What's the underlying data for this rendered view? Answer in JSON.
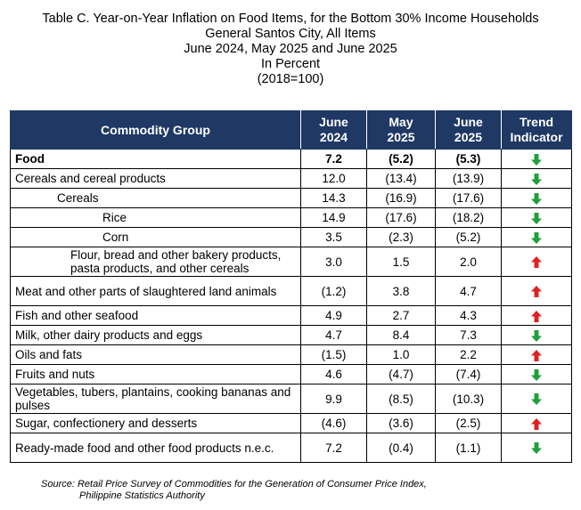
{
  "title": {
    "line1": "Table C. Year-on-Year Inflation on Food Items, for the Bottom 30% Income Households",
    "line2": "General Santos City, All Items",
    "line3": "June 2024, May 2025 and June 2025",
    "line4": "In Percent",
    "line5": "(2018=100)"
  },
  "table": {
    "headers": {
      "commodity": "Commodity Group",
      "june2024": [
        "June",
        "2024"
      ],
      "may2025": [
        "May",
        "2025"
      ],
      "june2025": [
        "June",
        "2025"
      ],
      "trend": [
        "Trend",
        "Indicator"
      ]
    },
    "colors": {
      "header_bg": "#1f3864",
      "up_arrow": "#e02020",
      "down_arrow": "#1fa03a"
    },
    "rows": [
      {
        "name": "Food",
        "v1": "7.2",
        "v2": "(5.2)",
        "v3": "(5.3)",
        "trend": "down",
        "trend_icon": "down-arrow-icon",
        "level": 0,
        "bold": true,
        "tall": false
      },
      {
        "name": "Cereals and cereal products",
        "v1": "12.0",
        "v2": "(13.4)",
        "v3": "(13.9)",
        "trend": "down",
        "trend_icon": "down-arrow-icon",
        "level": 0,
        "bold": false,
        "tall": false
      },
      {
        "name": "Cereals",
        "v1": "14.3",
        "v2": "(16.9)",
        "v3": "(17.6)",
        "trend": "down",
        "trend_icon": "down-arrow-icon",
        "level": 1,
        "bold": false,
        "tall": false
      },
      {
        "name": "Rice",
        "v1": "14.9",
        "v2": "(17.6)",
        "v3": "(18.2)",
        "trend": "down",
        "trend_icon": "down-arrow-icon",
        "level": 2,
        "bold": false,
        "tall": false
      },
      {
        "name": "Corn",
        "v1": "3.5",
        "v2": "(2.3)",
        "v3": "(5.2)",
        "trend": "down",
        "trend_icon": "down-arrow-icon",
        "level": 2,
        "bold": false,
        "tall": false
      },
      {
        "name": "Flour, bread and other bakery products, pasta products, and other cereals",
        "v1": "3.0",
        "v2": "1.5",
        "v3": "2.0",
        "trend": "up",
        "trend_icon": "up-arrow-icon",
        "level": 3,
        "bold": false,
        "tall": true
      },
      {
        "name": "Meat and other parts of slaughtered land animals",
        "v1": "(1.2)",
        "v2": "3.8",
        "v3": "4.7",
        "trend": "up",
        "trend_icon": "up-arrow-icon",
        "level": 0,
        "bold": false,
        "tall": true
      },
      {
        "name": "Fish and other seafood",
        "v1": "4.9",
        "v2": "2.7",
        "v3": "4.3",
        "trend": "up",
        "trend_icon": "up-arrow-icon",
        "level": 0,
        "bold": false,
        "tall": false
      },
      {
        "name": "Milk, other dairy products and eggs",
        "v1": "4.7",
        "v2": "8.4",
        "v3": "7.3",
        "trend": "down",
        "trend_icon": "down-arrow-icon",
        "level": 0,
        "bold": false,
        "tall": false
      },
      {
        "name": "Oils and fats",
        "v1": "(1.5)",
        "v2": "1.0",
        "v3": "2.2",
        "trend": "up",
        "trend_icon": "up-arrow-icon",
        "level": 0,
        "bold": false,
        "tall": false
      },
      {
        "name": "Fruits and nuts",
        "v1": "4.6",
        "v2": "(4.7)",
        "v3": "(7.4)",
        "trend": "down",
        "trend_icon": "down-arrow-icon",
        "level": 0,
        "bold": false,
        "tall": false
      },
      {
        "name": "Vegetables, tubers, plantains, cooking bananas and pulses",
        "v1": "9.9",
        "v2": "(8.5)",
        "v3": "(10.3)",
        "trend": "down",
        "trend_icon": "down-arrow-icon",
        "level": 0,
        "bold": false,
        "tall": true
      },
      {
        "name": "Sugar, confectionery and desserts",
        "v1": "(4.6)",
        "v2": "(3.6)",
        "v3": "(2.5)",
        "trend": "up",
        "trend_icon": "up-arrow-icon",
        "level": 0,
        "bold": false,
        "tall": false
      },
      {
        "name": "Ready-made food and other food products n.e.c.",
        "v1": "7.2",
        "v2": "(0.4)",
        "v3": "(1.1)",
        "trend": "down",
        "trend_icon": "down-arrow-icon",
        "level": 0,
        "bold": false,
        "tall": true
      }
    ]
  },
  "source": {
    "line1": "Source: Retail Price Survey of Commodities for the Generation of Consumer Price Index,",
    "line2": "Philippine Statistics Authority"
  }
}
